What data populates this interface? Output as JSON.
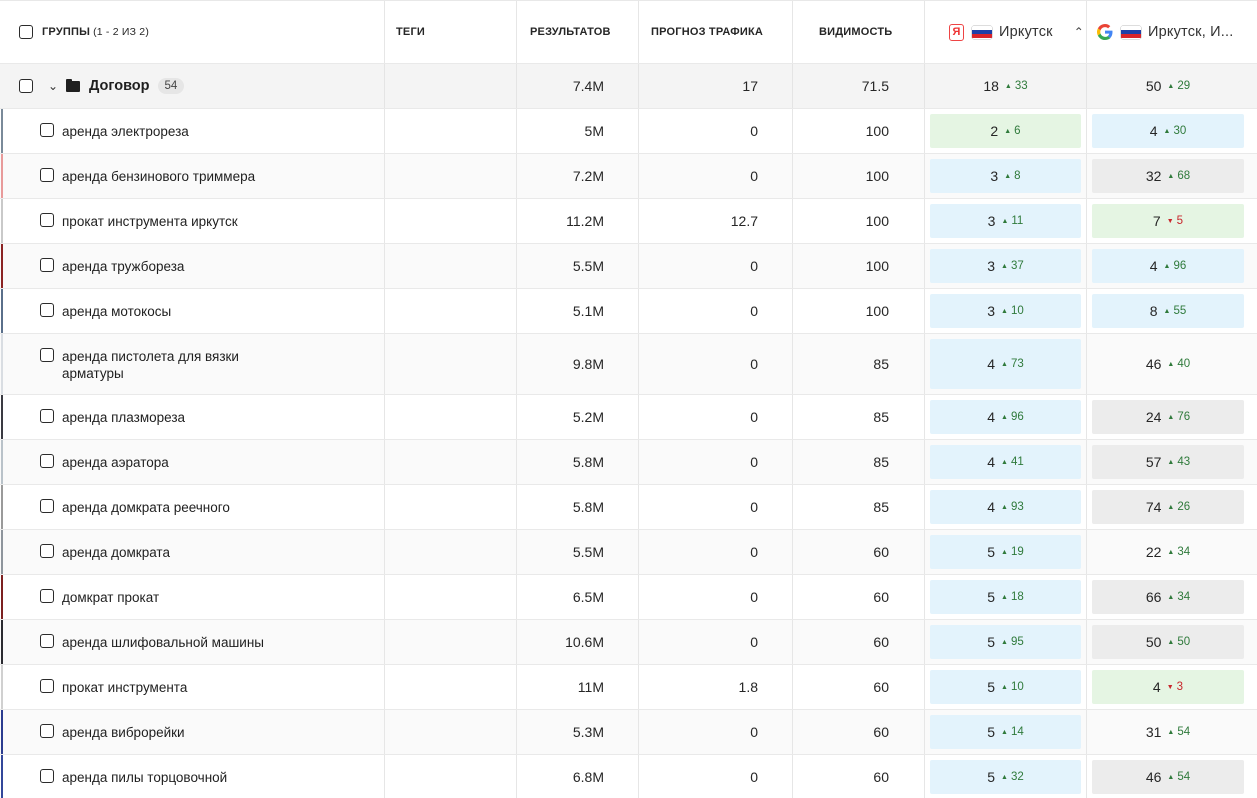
{
  "header": {
    "groups_label": "ГРУППЫ",
    "groups_count": "(1 - 2 ИЗ 2)",
    "tags": "ТЕГИ",
    "results": "РЕЗУЛЬТАТОВ",
    "traffic": "ПРОГНОЗ ТРАФИКА",
    "visibility": "ВИДИМОСТЬ",
    "yandex_region": "Иркутск",
    "google_region": "Иркутск, И...",
    "yandex_logo": "Я"
  },
  "group": {
    "name": "Договор",
    "count": "54",
    "results": "7.4M",
    "traffic": "17",
    "visibility": "71.5",
    "yandex": {
      "pos": "18",
      "delta": "33",
      "dir": "up"
    },
    "google": {
      "pos": "50",
      "delta": "29",
      "dir": "up"
    }
  },
  "rows": [
    {
      "kw": "аренда электрореза",
      "results": "5M",
      "traffic": "0",
      "vis": "100",
      "accent": "#7a8a99",
      "y": {
        "pos": "2",
        "delta": "6",
        "dir": "up",
        "bg": "green"
      },
      "g": {
        "pos": "4",
        "delta": "30",
        "dir": "up",
        "bg": "blue"
      }
    },
    {
      "kw": "аренда бензинового триммера",
      "results": "7.2M",
      "traffic": "0",
      "vis": "100",
      "accent": "#e89a9a",
      "y": {
        "pos": "3",
        "delta": "8",
        "dir": "up",
        "bg": "blue"
      },
      "g": {
        "pos": "32",
        "delta": "68",
        "dir": "up",
        "bg": "gray"
      }
    },
    {
      "kw": "прокат инструмента иркутск",
      "results": "11.2M",
      "traffic": "12.7",
      "vis": "100",
      "accent": "#c9c9c9",
      "y": {
        "pos": "3",
        "delta": "11",
        "dir": "up",
        "bg": "blue"
      },
      "g": {
        "pos": "7",
        "delta": "5",
        "dir": "down",
        "bg": "green"
      }
    },
    {
      "kw": "аренда тружбореза",
      "results": "5.5M",
      "traffic": "0",
      "vis": "100",
      "accent": "#8b2323",
      "y": {
        "pos": "3",
        "delta": "37",
        "dir": "up",
        "bg": "blue"
      },
      "g": {
        "pos": "4",
        "delta": "96",
        "dir": "up",
        "bg": "blue"
      }
    },
    {
      "kw": "аренда мотокосы",
      "results": "5.1M",
      "traffic": "0",
      "vis": "100",
      "accent": "#5a6f8a",
      "y": {
        "pos": "3",
        "delta": "10",
        "dir": "up",
        "bg": "blue"
      },
      "g": {
        "pos": "8",
        "delta": "55",
        "dir": "up",
        "bg": "blue"
      }
    },
    {
      "kw": "аренда пистолета для вязки арматуры",
      "results": "9.8M",
      "traffic": "0",
      "vis": "85",
      "accent": "#d9dde2",
      "tall": true,
      "y": {
        "pos": "4",
        "delta": "73",
        "dir": "up",
        "bg": "blue"
      },
      "g": {
        "pos": "46",
        "delta": "40",
        "dir": "up",
        "bg": "none"
      }
    },
    {
      "kw": "аренда плазмореза",
      "results": "5.2M",
      "traffic": "0",
      "vis": "85",
      "accent": "#3a3a42",
      "y": {
        "pos": "4",
        "delta": "96",
        "dir": "up",
        "bg": "blue"
      },
      "g": {
        "pos": "24",
        "delta": "76",
        "dir": "up",
        "bg": "gray"
      }
    },
    {
      "kw": "аренда аэратора",
      "results": "5.8M",
      "traffic": "0",
      "vis": "85",
      "accent": "#b9c2c9",
      "y": {
        "pos": "4",
        "delta": "41",
        "dir": "up",
        "bg": "blue"
      },
      "g": {
        "pos": "57",
        "delta": "43",
        "dir": "up",
        "bg": "gray"
      }
    },
    {
      "kw": "аренда домкрата реечного",
      "results": "5.8M",
      "traffic": "0",
      "vis": "85",
      "accent": "#9a9a9a",
      "y": {
        "pos": "4",
        "delta": "93",
        "dir": "up",
        "bg": "blue"
      },
      "g": {
        "pos": "74",
        "delta": "26",
        "dir": "up",
        "bg": "gray"
      }
    },
    {
      "kw": "аренда домкрата",
      "results": "5.5M",
      "traffic": "0",
      "vis": "60",
      "accent": "#8e959c",
      "y": {
        "pos": "5",
        "delta": "19",
        "dir": "up",
        "bg": "blue"
      },
      "g": {
        "pos": "22",
        "delta": "34",
        "dir": "up",
        "bg": "none"
      }
    },
    {
      "kw": "домкрат прокат",
      "results": "6.5M",
      "traffic": "0",
      "vis": "60",
      "accent": "#7c2020",
      "y": {
        "pos": "5",
        "delta": "18",
        "dir": "up",
        "bg": "blue"
      },
      "g": {
        "pos": "66",
        "delta": "34",
        "dir": "up",
        "bg": "gray"
      }
    },
    {
      "kw": "аренда шлифовальной машины",
      "results": "10.6M",
      "traffic": "0",
      "vis": "60",
      "accent": "#2a2a30",
      "y": {
        "pos": "5",
        "delta": "95",
        "dir": "up",
        "bg": "blue"
      },
      "g": {
        "pos": "50",
        "delta": "50",
        "dir": "up",
        "bg": "gray"
      }
    },
    {
      "kw": "прокат инструмента",
      "results": "11M",
      "traffic": "1.8",
      "vis": "60",
      "accent": "#d0d0d0",
      "y": {
        "pos": "5",
        "delta": "10",
        "dir": "up",
        "bg": "blue"
      },
      "g": {
        "pos": "4",
        "delta": "3",
        "dir": "down",
        "bg": "green"
      }
    },
    {
      "kw": "аренда виброрейки",
      "results": "5.3M",
      "traffic": "0",
      "vis": "60",
      "accent": "#2b3c8f",
      "y": {
        "pos": "5",
        "delta": "14",
        "dir": "up",
        "bg": "blue"
      },
      "g": {
        "pos": "31",
        "delta": "54",
        "dir": "up",
        "bg": "none"
      }
    },
    {
      "kw": "аренда пилы торцовочной",
      "results": "6.8M",
      "traffic": "0",
      "vis": "60",
      "accent": "#33479a",
      "y": {
        "pos": "5",
        "delta": "32",
        "dir": "up",
        "bg": "blue"
      },
      "g": {
        "pos": "46",
        "delta": "54",
        "dir": "up",
        "bg": "gray"
      }
    }
  ]
}
